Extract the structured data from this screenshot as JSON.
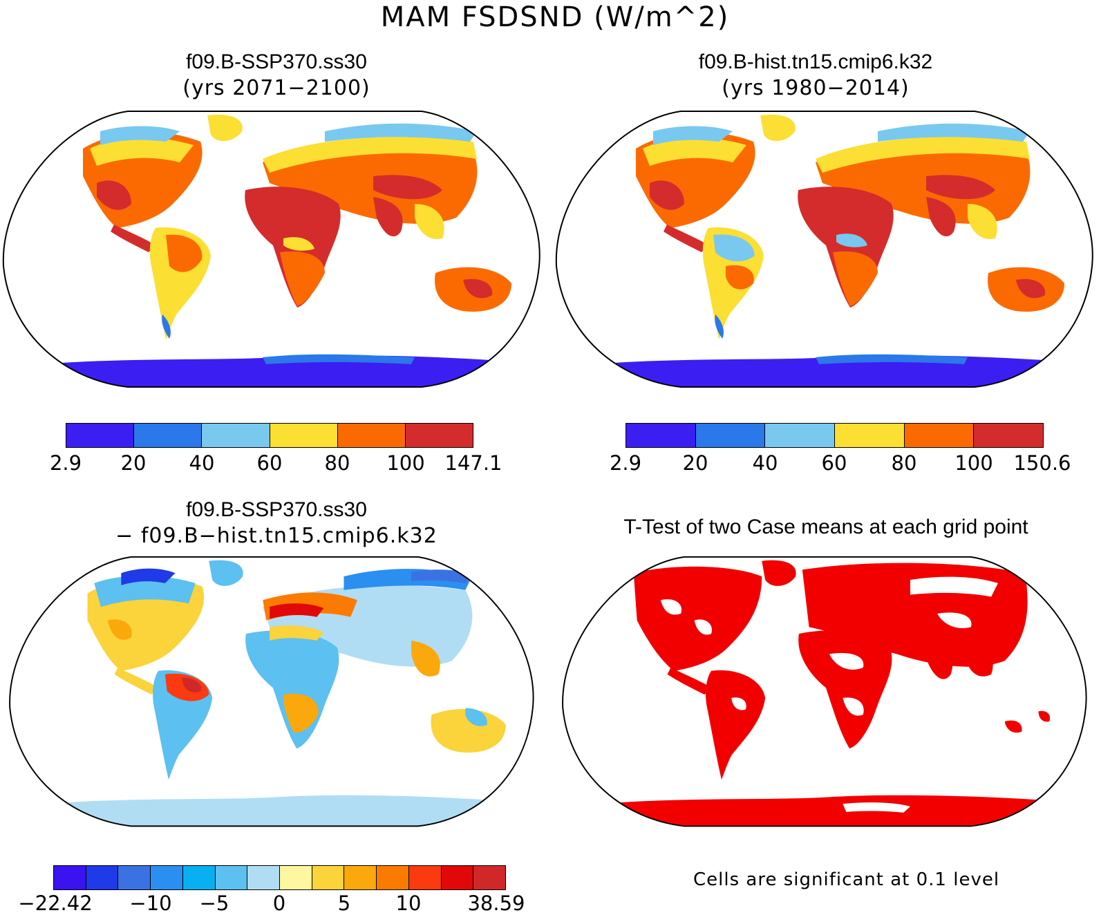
{
  "title": "MAM FSDSND (W/m^2)",
  "panels": {
    "a": {
      "title": "f09.B-SSP370.ss30",
      "subtitle": "(yrs 2071−2100)"
    },
    "b": {
      "title": "f09.B-hist.tn15.cmip6.k32",
      "subtitle": "(yrs 1980−2014)"
    },
    "c": {
      "title": "f09.B-SSP370.ss30",
      "subtitle": "− f09.B−hist.tn15.cmip6.k32"
    },
    "d": {
      "title": "T-Test of two Case means at each grid point",
      "note": "Cells are significant at 0.1 level"
    }
  },
  "colorbars": {
    "a": {
      "colors": [
        "#3b1ef2",
        "#2a78ea",
        "#79c8f0",
        "#fbdf33",
        "#fb6a00",
        "#d42c2c"
      ],
      "labels": [
        "2.9",
        "20",
        "40",
        "60",
        "80",
        "100",
        "147.1"
      ]
    },
    "b": {
      "colors": [
        "#3b1ef2",
        "#2a78ea",
        "#79c8f0",
        "#fbdf33",
        "#fb6a00",
        "#d42c2c"
      ],
      "labels": [
        "2.9",
        "20",
        "40",
        "60",
        "80",
        "100",
        "150.6"
      ]
    },
    "c": {
      "colors": [
        "#3b12f0",
        "#1f3ae8",
        "#3a72e4",
        "#2a8ff0",
        "#08b0f2",
        "#5cc0f0",
        "#b0ddf4",
        "#fff7a0",
        "#fbd33a",
        "#fba80c",
        "#fb7a00",
        "#fb3a10",
        "#e00808",
        "#d02828"
      ],
      "labels": [
        "−22.42",
        "−10",
        "−5",
        "0",
        "5",
        "10",
        "38.59"
      ]
    }
  },
  "map_colors": {
    "ocean": "#ffffff",
    "coast": "#000000",
    "significant": "#f20000"
  }
}
